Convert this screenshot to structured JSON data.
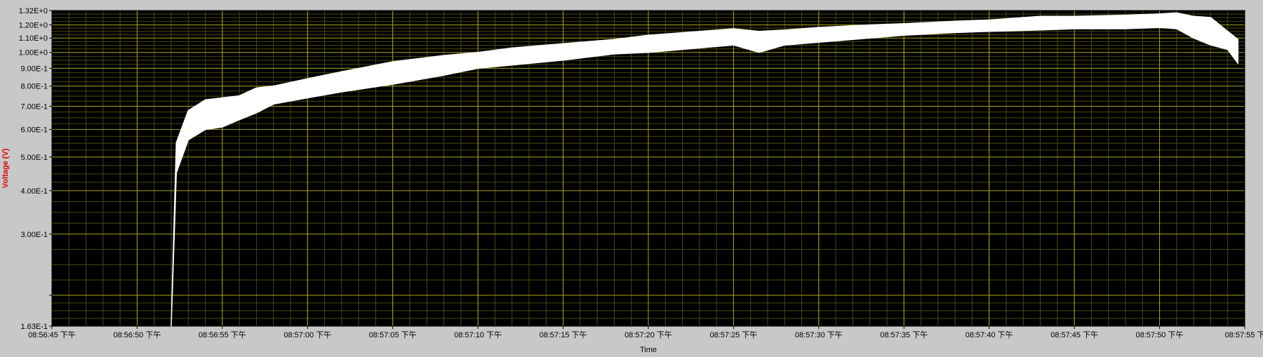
{
  "colors": {
    "window_bg": "#c8c8c8",
    "plot_bg": "#000000",
    "major_grid": "#a8a41e",
    "minor_grid": "#4a4a0c",
    "trace": "#ffffff",
    "ylabel": "#e00000",
    "tick_text": "#000000"
  },
  "chart_data": {
    "type": "area",
    "title": "",
    "xlabel": "Time",
    "ylabel": "Voltage (V)",
    "y_scale": "log",
    "grid": true,
    "ylim": [
      0.163,
      1.32
    ],
    "xlim": [
      "08:56:45 下午",
      "08:57:55 下午"
    ],
    "y_ticks": [
      {
        "value": 1.32,
        "label": "1.32E+0"
      },
      {
        "value": 1.2,
        "label": "1.20E+0"
      },
      {
        "value": 1.1,
        "label": "1.10E+0"
      },
      {
        "value": 1.0,
        "label": "1.00E+0"
      },
      {
        "value": 0.9,
        "label": "9.00E-1"
      },
      {
        "value": 0.8,
        "label": "8.00E-1"
      },
      {
        "value": 0.7,
        "label": "7.00E-1"
      },
      {
        "value": 0.6,
        "label": "6.00E-1"
      },
      {
        "value": 0.5,
        "label": "5.00E-1"
      },
      {
        "value": 0.4,
        "label": "4.00E-1"
      },
      {
        "value": 0.3,
        "label": "3.00E-1"
      },
      {
        "value": 0.2,
        "label": ""
      },
      {
        "value": 0.163,
        "label": "1.63E-1"
      }
    ],
    "x_ticks": [
      "08:56:45 下午",
      "08:56:50 下午",
      "08:56:55 下午",
      "08:57:00 下午",
      "08:57:05 下午",
      "08:57:10 下午",
      "08:57:15 下午",
      "08:57:20 下午",
      "08:57:25 下午",
      "08:57:30 下午",
      "08:57:35 下午",
      "08:57:40 下午",
      "08:57:45 下午",
      "08:57:50 下午",
      "08:57:55 下"
    ],
    "series": [
      {
        "x": [
          "08:56:52",
          "08:56:52.3",
          "08:56:53",
          "08:56:54",
          "08:56:55",
          "08:56:56",
          "08:56:57",
          "08:56:58",
          "08:57:00",
          "08:57:02",
          "08:57:05",
          "08:57:08",
          "08:57:10",
          "08:57:12",
          "08:57:15",
          "08:57:18",
          "08:57:20",
          "08:57:23",
          "08:57:25",
          "08:57:26.5",
          "08:57:28",
          "08:57:30",
          "08:57:33",
          "08:57:35",
          "08:57:38",
          "08:57:40",
          "08:57:43",
          "08:57:45",
          "08:57:48",
          "08:57:50",
          "08:57:51",
          "08:57:52",
          "08:57:53",
          "08:57:54",
          "08:57:54.6"
        ],
        "upper": [
          0.163,
          0.55,
          0.68,
          0.73,
          0.74,
          0.75,
          0.79,
          0.8,
          0.84,
          0.88,
          0.94,
          0.98,
          1.0,
          1.03,
          1.06,
          1.09,
          1.12,
          1.15,
          1.17,
          1.15,
          1.16,
          1.18,
          1.2,
          1.21,
          1.23,
          1.24,
          1.27,
          1.27,
          1.28,
          1.29,
          1.3,
          1.27,
          1.26,
          1.15,
          1.09
        ],
        "lower": [
          0.163,
          0.45,
          0.56,
          0.6,
          0.61,
          0.64,
          0.67,
          0.71,
          0.74,
          0.77,
          0.81,
          0.86,
          0.9,
          0.92,
          0.95,
          0.99,
          1.0,
          1.03,
          1.05,
          1.0,
          1.05,
          1.07,
          1.1,
          1.12,
          1.14,
          1.15,
          1.16,
          1.17,
          1.17,
          1.18,
          1.17,
          1.1,
          1.05,
          1.02,
          0.93
        ]
      }
    ]
  }
}
